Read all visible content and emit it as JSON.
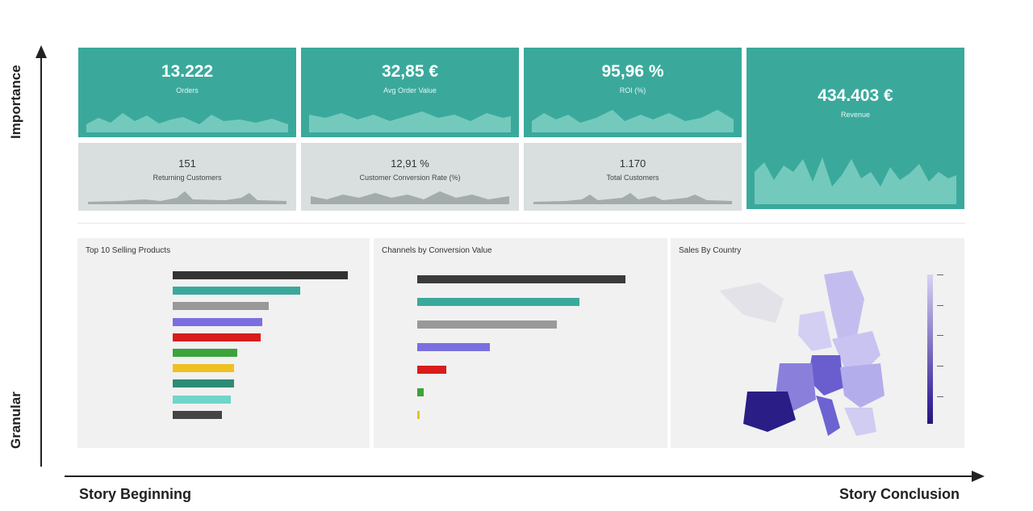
{
  "axes": {
    "vertical_top": "Importance",
    "vertical_bottom": "Granular",
    "horizontal_left": "Story Beginning",
    "horizontal_right": "Story Conclusion"
  },
  "kpis": {
    "orders": {
      "value": "13.222",
      "label": "Orders"
    },
    "aov": {
      "value": "32,85 €",
      "label": "Avg Order Value"
    },
    "roi": {
      "value": "95,96 %",
      "label": "ROI (%)"
    },
    "revenue": {
      "value": "434.403 €",
      "label": "Revenue"
    },
    "returning": {
      "value": "151",
      "label": "Returning Customers"
    },
    "conversion": {
      "value": "12,91 %",
      "label": "Customer Conversion Rate (%)"
    },
    "total_customers": {
      "value": "1.170",
      "label": "Total Customers"
    }
  },
  "colors": {
    "kpi_primary": "#3aa99c",
    "kpi_secondary": "#d9dfdf",
    "panel_bg": "#f1f1f1",
    "map_low": "#d7d4f2",
    "map_high": "#241775"
  },
  "chart_data": [
    {
      "type": "bar",
      "orientation": "horizontal",
      "title": "Top 10 Selling Products",
      "categories": [
        "",
        "",
        "",
        "",
        "",
        "",
        "",
        "",
        "",
        ""
      ],
      "values": [
        100,
        73,
        55,
        51,
        50,
        37,
        35,
        35,
        33,
        28
      ],
      "colors": [
        "#333333",
        "#3aa99c",
        "#999999",
        "#7b6fe0",
        "#d91c1c",
        "#3ca33c",
        "#f0c020",
        "#2e8b74",
        "#6fd6c9",
        "#444444"
      ],
      "xlim": [
        0,
        100
      ]
    },
    {
      "type": "bar",
      "orientation": "horizontal",
      "title": "Channels by Conversion Value",
      "categories": [
        "",
        "",
        "",
        "",
        "",
        "",
        ""
      ],
      "values": [
        100,
        78,
        67,
        35,
        14,
        3,
        1
      ],
      "colors": [
        "#3b3b3b",
        "#3aa99c",
        "#999999",
        "#7b6fe0",
        "#d91c1c",
        "#3ca33c",
        "#f0c020"
      ],
      "xlim": [
        0,
        100
      ]
    },
    {
      "type": "heatmap",
      "title": "Sales By Country"
    }
  ]
}
